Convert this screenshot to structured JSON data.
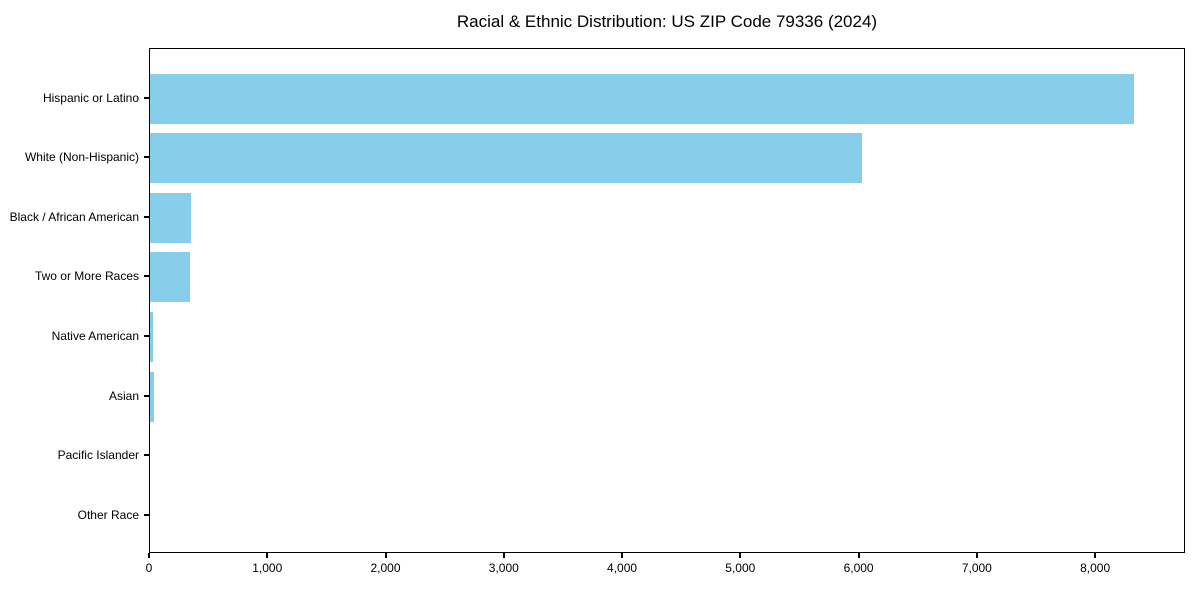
{
  "chart_data": {
    "type": "bar",
    "orientation": "horizontal",
    "title": "Racial & Ethnic Distribution: US ZIP Code 79336 (2024)",
    "categories": [
      "Hispanic or Latino",
      "White (Non-Hispanic)",
      "Black / African American",
      "Two or More Races",
      "Native American",
      "Asian",
      "Pacific Islander",
      "Other Race"
    ],
    "values": [
      8340,
      6030,
      350,
      340,
      25,
      35,
      0,
      0
    ],
    "xlabel": "",
    "ylabel": "",
    "xlim": [
      0,
      8760
    ],
    "x_ticks": [
      0,
      1000,
      2000,
      3000,
      4000,
      5000,
      6000,
      7000,
      8000
    ],
    "x_tick_labels": [
      "0",
      "1,000",
      "2,000",
      "3,000",
      "4,000",
      "5,000",
      "6,000",
      "7,000",
      "8,000"
    ],
    "bar_color": "#87CEEB",
    "text_color": "#000000",
    "grid": false,
    "legend_position": "none"
  }
}
